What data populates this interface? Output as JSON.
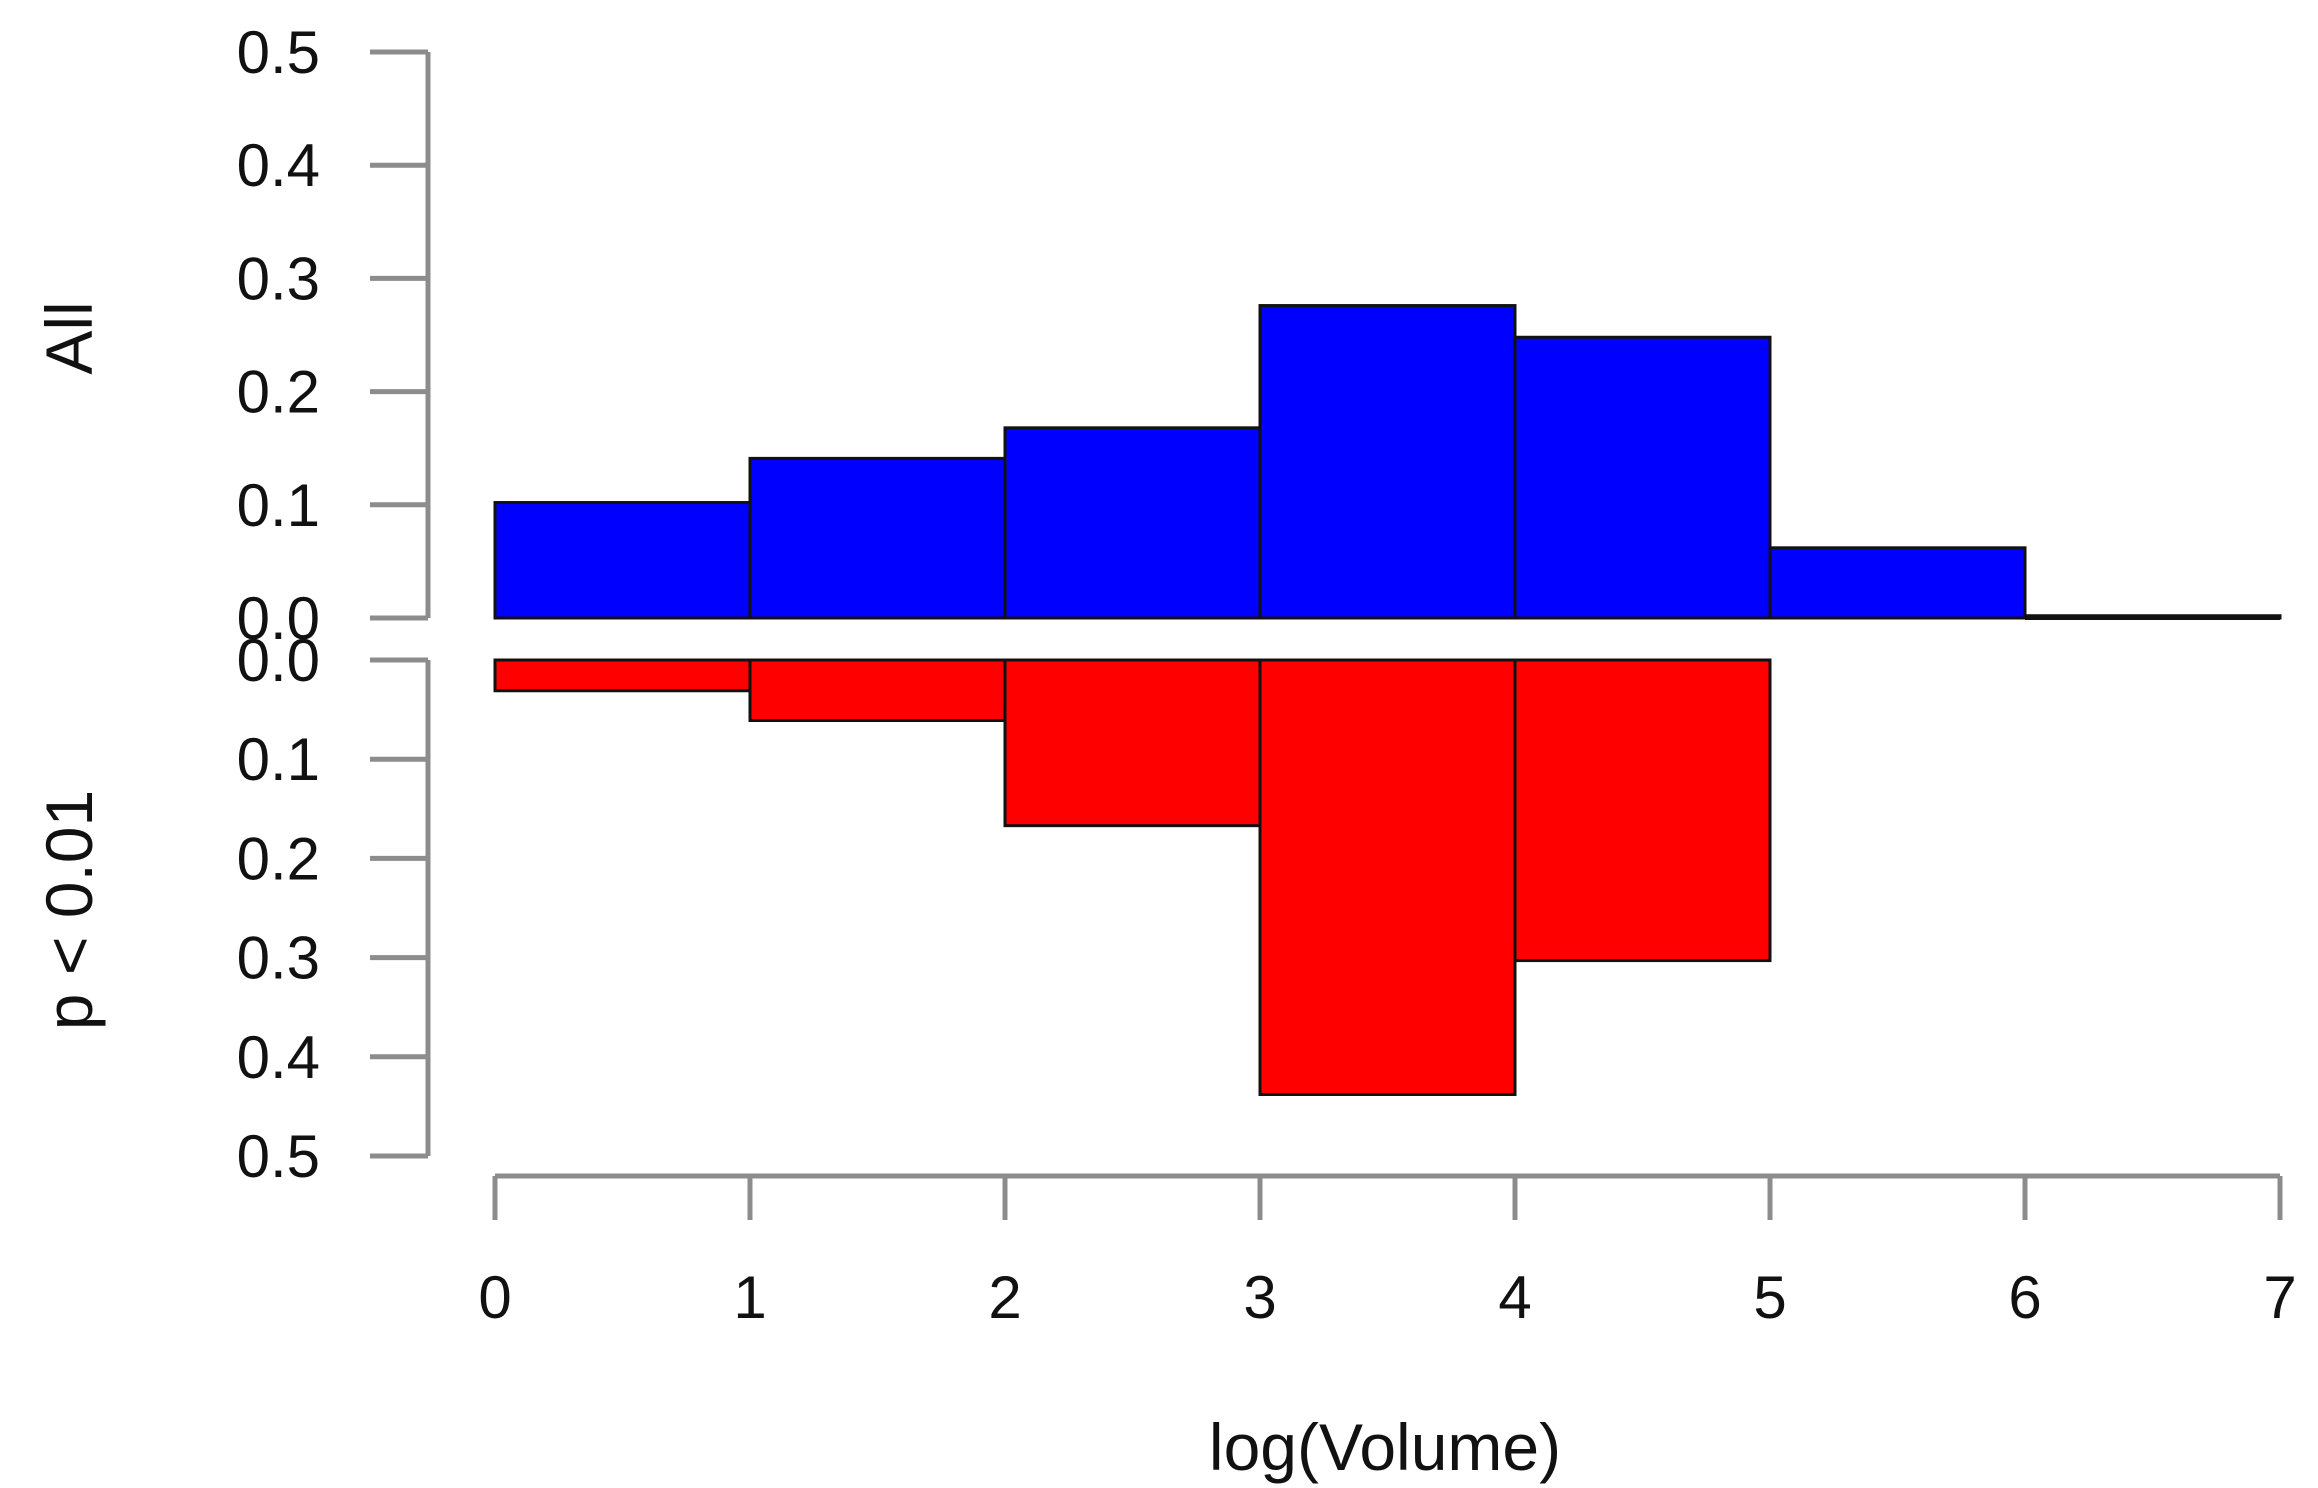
{
  "chart_data": {
    "type": "bar",
    "subtype": "mirrored-histogram",
    "xlabel": "log(Volume)",
    "xlim": [
      0,
      7
    ],
    "x_ticks": [
      "0",
      "1",
      "2",
      "3",
      "4",
      "5",
      "6",
      "7"
    ],
    "bins": [
      [
        0,
        1
      ],
      [
        1,
        2
      ],
      [
        2,
        3
      ],
      [
        3,
        4
      ],
      [
        4,
        5
      ],
      [
        5,
        6
      ],
      [
        6,
        7
      ]
    ],
    "panels": [
      {
        "name": "All",
        "ylabel": "All",
        "direction": "up",
        "color": "#0000ff",
        "ylim": [
          0,
          0.5
        ],
        "y_ticks": [
          "0.0",
          "0.1",
          "0.2",
          "0.3",
          "0.4",
          "0.5"
        ],
        "values": [
          0.102,
          0.141,
          0.168,
          0.276,
          0.248,
          0.062,
          0.002
        ]
      },
      {
        "name": "p < 0.01",
        "ylabel": "p < 0.01",
        "direction": "down",
        "color": "#ff0000",
        "ylim": [
          0,
          0.5
        ],
        "y_ticks": [
          "0.0",
          "0.1",
          "0.2",
          "0.3",
          "0.4",
          "0.5"
        ],
        "values": [
          0.031,
          0.061,
          0.167,
          0.438,
          0.303,
          0.0,
          0.0
        ]
      }
    ]
  }
}
